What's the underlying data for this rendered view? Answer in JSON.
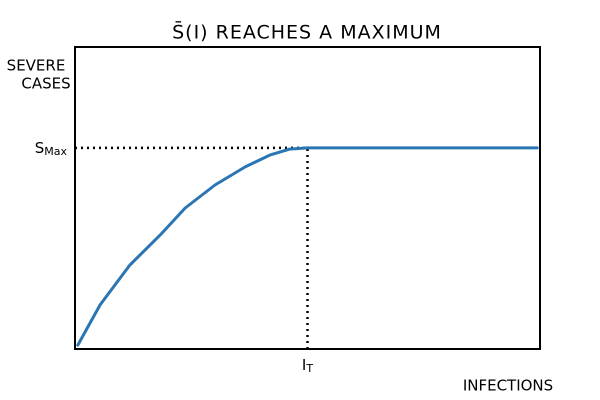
{
  "chart_data": {
    "type": "line",
    "title": "S̄(I) REACHES A MAXIMUM",
    "y_label": [
      "SEVERE",
      "CASES"
    ],
    "x_label": "INFECTIONS",
    "x": [
      0.006,
      0.054,
      0.118,
      0.183,
      0.237,
      0.301,
      0.366,
      0.419,
      0.462,
      0.5,
      0.6,
      0.7,
      0.8,
      0.9,
      0.994
    ],
    "series": [
      {
        "color": "#2a75b3",
        "values": [
          0.013,
          0.146,
          0.278,
          0.377,
          0.467,
          0.543,
          0.603,
          0.642,
          0.662,
          0.666,
          0.666,
          0.666,
          0.666,
          0.666,
          0.666
        ]
      }
    ],
    "xlim": [
      0,
      1
    ],
    "ylim": [
      0,
      1
    ],
    "xticks": [
      {
        "value": 0.5,
        "label": "I",
        "subscript": "T"
      }
    ],
    "yticks": [
      {
        "value": 0.666,
        "label": "S",
        "subscript": "Max"
      }
    ],
    "reference_lines": true
  }
}
